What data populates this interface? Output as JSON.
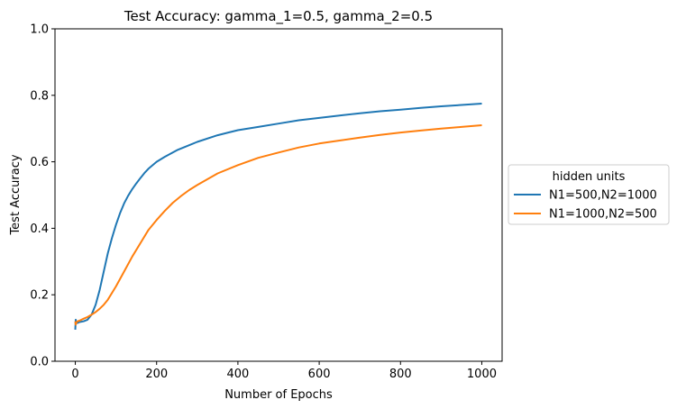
{
  "chart_data": {
    "type": "line",
    "title": "Test Accuracy:  gamma_1=0.5, gamma_2=0.5",
    "xlabel": "Number of Epochs",
    "ylabel": "Test Accuracy",
    "xlim": [
      -50,
      1050
    ],
    "ylim": [
      0.0,
      1.0
    ],
    "xticks": [
      0,
      200,
      400,
      600,
      800,
      1000
    ],
    "yticks": [
      0.0,
      0.2,
      0.4,
      0.6,
      0.8,
      1.0
    ],
    "grid": false,
    "legend": {
      "title": "hidden units",
      "placement": "outside-right"
    },
    "series": [
      {
        "name": "N1=500,N2=1000",
        "color": "#1f77b4",
        "x": [
          0,
          1,
          2,
          5,
          10,
          20,
          30,
          40,
          50,
          60,
          70,
          80,
          90,
          100,
          110,
          120,
          130,
          140,
          150,
          160,
          170,
          180,
          200,
          220,
          250,
          280,
          300,
          350,
          400,
          450,
          500,
          550,
          600,
          650,
          700,
          750,
          800,
          850,
          900,
          950,
          1000
        ],
        "y": [
          0.095,
          0.125,
          0.118,
          0.115,
          0.118,
          0.12,
          0.125,
          0.14,
          0.17,
          0.215,
          0.27,
          0.325,
          0.37,
          0.41,
          0.445,
          0.475,
          0.498,
          0.518,
          0.535,
          0.551,
          0.566,
          0.579,
          0.6,
          0.615,
          0.635,
          0.65,
          0.66,
          0.68,
          0.695,
          0.705,
          0.715,
          0.725,
          0.732,
          0.739,
          0.746,
          0.752,
          0.757,
          0.762,
          0.767,
          0.771,
          0.775
        ]
      },
      {
        "name": "N1=1000,N2=500",
        "color": "#ff7f0e",
        "x": [
          0,
          1,
          2,
          5,
          10,
          20,
          30,
          40,
          50,
          60,
          70,
          80,
          100,
          120,
          140,
          160,
          180,
          200,
          220,
          240,
          260,
          280,
          300,
          350,
          400,
          450,
          500,
          550,
          600,
          650,
          700,
          750,
          800,
          850,
          900,
          950,
          1000
        ],
        "y": [
          0.12,
          0.11,
          0.115,
          0.12,
          0.122,
          0.128,
          0.133,
          0.14,
          0.148,
          0.158,
          0.17,
          0.185,
          0.225,
          0.27,
          0.315,
          0.355,
          0.395,
          0.425,
          0.452,
          0.477,
          0.497,
          0.515,
          0.53,
          0.565,
          0.59,
          0.612,
          0.628,
          0.643,
          0.655,
          0.664,
          0.673,
          0.681,
          0.688,
          0.694,
          0.7,
          0.705,
          0.71
        ]
      }
    ]
  }
}
